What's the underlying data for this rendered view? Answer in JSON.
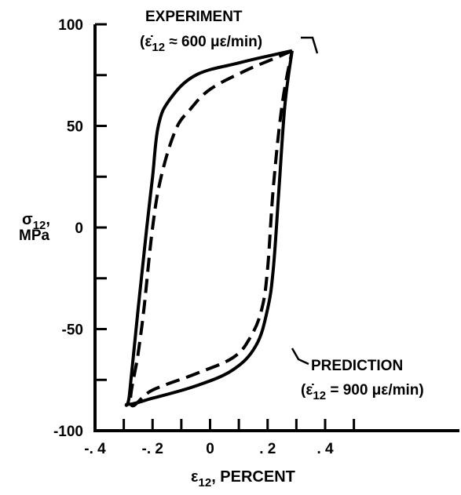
{
  "chart_data": {
    "type": "line",
    "xlabel": {
      "symbol": "ε",
      "subscript": "12",
      "suffix": ", PERCENT"
    },
    "ylabel": {
      "symbol": "σ",
      "subscript": "12",
      "suffix": ",",
      "line2": "MPa"
    },
    "xlim": [
      -0.4,
      0.55
    ],
    "ylim": [
      -100,
      100
    ],
    "x_ticks": [
      -0.4,
      -0.2,
      0,
      0.2,
      0.4
    ],
    "x_tick_labels": [
      "-. 4",
      "-. 2",
      "0",
      ". 2",
      ". 4"
    ],
    "y_ticks": [
      -100,
      -50,
      0,
      50,
      100
    ],
    "y_tick_labels": [
      "-100",
      "-50",
      "0",
      "50",
      "100"
    ],
    "grid": false,
    "series": [
      {
        "name": "EXPERIMENT",
        "style": "solid",
        "color": "#000000",
        "x": [
          0.285,
          0.22,
          0.1,
          -0.05,
          -0.14,
          -0.18,
          -0.2,
          -0.22,
          -0.25,
          -0.28,
          -0.285,
          -0.2,
          -0.05,
          0.08,
          0.16,
          0.2,
          0.22,
          0.24,
          0.26,
          0.285
        ],
        "y": [
          87,
          85,
          81,
          75,
          63,
          50,
          25,
          0,
          -40,
          -82,
          -87,
          -84,
          -78,
          -70,
          -58,
          -40,
          -20,
          20,
          60,
          87
        ]
      },
      {
        "name": "PREDICTION",
        "style": "dashed",
        "color": "#000000",
        "x": [
          0.285,
          0.22,
          0.12,
          0.0,
          -0.07,
          -0.12,
          -0.17,
          -0.2,
          -0.23,
          -0.25,
          -0.275,
          -0.2,
          -0.05,
          0.08,
          0.14,
          0.18,
          0.2,
          0.22,
          0.25,
          0.285
        ],
        "y": [
          87,
          83,
          77,
          68,
          58,
          48,
          25,
          0,
          -40,
          -62,
          -87,
          -80,
          -72,
          -64,
          -54,
          -40,
          -20,
          20,
          60,
          87
        ]
      }
    ],
    "annotations": {
      "experiment": {
        "title": "EXPERIMENT",
        "rate_prefix": "(ε̇",
        "rate_sub": "12",
        "rate_suffix": " ≈ 600 με/min)"
      },
      "prediction": {
        "title": "PREDICTION",
        "rate_prefix": "(ε̇",
        "rate_sub": "12",
        "rate_suffix": " = 900 με/min)"
      }
    }
  }
}
